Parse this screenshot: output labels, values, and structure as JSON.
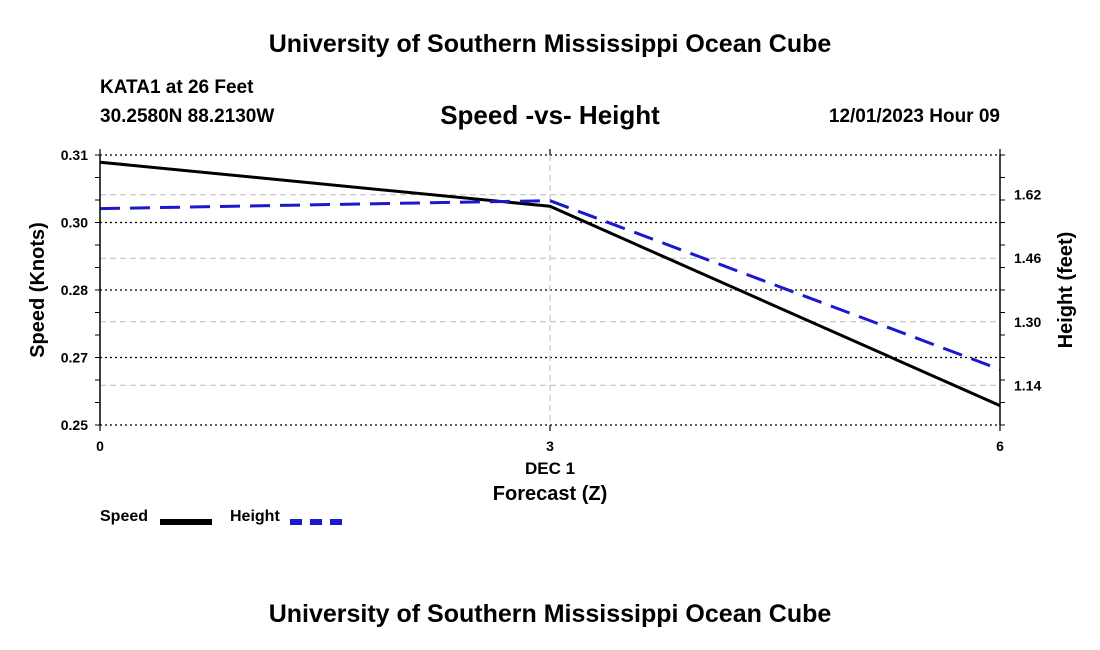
{
  "header": {
    "main_title": "University of Southern Mississippi Ocean Cube",
    "station": "KATA1 at 26 Feet",
    "coordinates": "30.2580N  88.2130W",
    "datetime": "12/01/2023 Hour 09"
  },
  "footer": {
    "title": "University of Southern Mississippi Ocean Cube"
  },
  "legend": {
    "speed_label": "Speed",
    "height_label": "Height"
  },
  "colors": {
    "speed": "#000000",
    "height": "#1a1acc",
    "grid": "#bbbbbb"
  },
  "chart_data": {
    "type": "line",
    "title": "Speed -vs- Height",
    "xlabel": "Forecast (Z)",
    "x_sublabel": "DEC 1",
    "x": [
      0,
      3,
      6
    ],
    "xlim": [
      0,
      6
    ],
    "x_tick_labels": [
      "0",
      "3",
      "6"
    ],
    "ylabel_left": "Speed (Knots)",
    "ylim_left": [
      0.25,
      0.31
    ],
    "yticks_left": [
      "0.25",
      "0.27",
      "0.28",
      "0.30",
      "0.31"
    ],
    "ylabel_right": "Height (feet)",
    "ylim_right": [
      1.04,
      1.72
    ],
    "yticks_right": [
      "1.14",
      "1.30",
      "1.46",
      "1.62"
    ],
    "series": [
      {
        "name": "Speed",
        "axis": "left",
        "style": "solid",
        "values": [
          0.3084,
          0.2986,
          0.2543
        ]
      },
      {
        "name": "Height",
        "axis": "right",
        "style": "dashed",
        "values": [
          1.585,
          1.605,
          1.18
        ]
      }
    ]
  }
}
